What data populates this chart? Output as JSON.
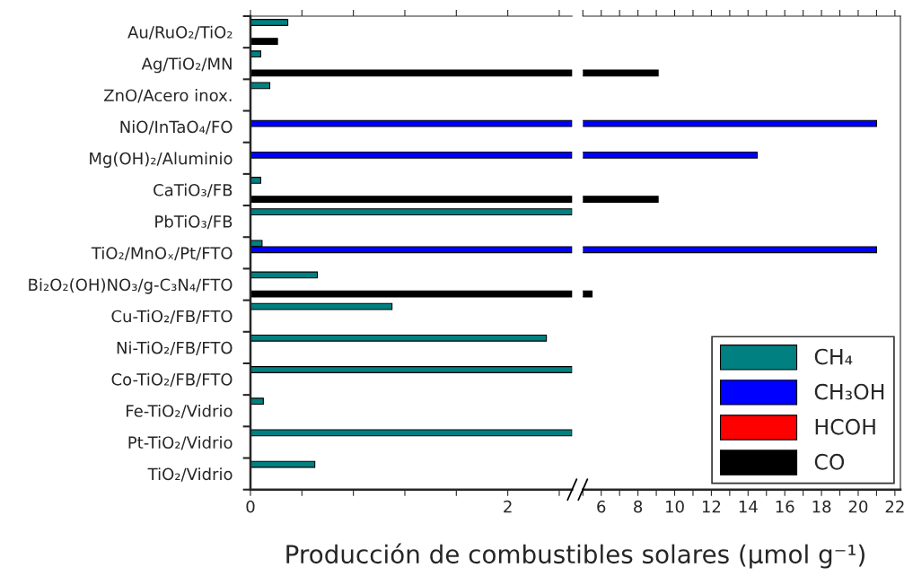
{
  "chart_data": [
    {
      "type": "bar",
      "orientation": "horizontal",
      "categories": [
        "Au/RuO₂/TiO₂",
        "Ag/TiO₂/MN",
        "ZnO/Acero inox.",
        "NiO/InTaO₄/FO",
        "Mg(OH)₂/Aluminio",
        "CaTiO₃/FB",
        "PbTiO₃/FB",
        "TiO₂/MnOₓ/Pt/FTO",
        "Bi₂O₂(OH)NO₃/g-C₃N₄/FTO",
        "Cu-TiO₂/FB/FTO",
        "Ni-TiO₂/FB/FTO",
        "Co-TiO₂/FB/FTO",
        "Fe-TiO₂/Vidrio",
        "Pt-TiO₂/Vidrio",
        "TiO₂/Vidrio"
      ],
      "series": [
        {
          "color": "#008080",
          "values": [
            0.29,
            0.08,
            0.15,
            null,
            null,
            0.08,
            2.5,
            0.09,
            0.52,
            1.1,
            2.3,
            2.5,
            0.1,
            2.5,
            0.5
          ]
        },
        {
          "color": "#0000ff",
          "values": [
            null,
            null,
            null,
            2.5,
            2.5,
            null,
            null,
            2.5,
            null,
            null,
            null,
            null,
            null,
            null,
            null
          ]
        },
        {
          "color": "#ff0000",
          "values": [
            null,
            null,
            null,
            null,
            null,
            null,
            null,
            null,
            null,
            null,
            null,
            null,
            null,
            null,
            null
          ]
        },
        {
          "color": "#000000",
          "values": [
            0.21,
            2.5,
            null,
            null,
            null,
            2.5,
            null,
            null,
            2.5,
            null,
            null,
            null,
            null,
            null,
            null
          ]
        }
      ],
      "xlim": [
        0,
        2.5
      ],
      "xticks": [
        0,
        {
          "value": 0.4,
          "label": null
        },
        {
          "value": 0.8,
          "label": null
        },
        {
          "value": 1.2,
          "label": null
        },
        {
          "value": 1.6,
          "label": null
        },
        2,
        {
          "value": 2.4,
          "label": null
        }
      ]
    },
    {
      "type": "bar",
      "orientation": "horizontal",
      "categories": [
        null,
        null,
        null,
        null,
        null,
        null,
        null,
        null,
        null,
        null,
        null,
        null,
        null,
        null,
        null
      ],
      "tick_labels": "x",
      "series": [
        {
          "name": "CH₄",
          "color": "#008080",
          "values": [
            null,
            null,
            null,
            null,
            null,
            null,
            null,
            null,
            null,
            null,
            null,
            null,
            null,
            null,
            null
          ]
        },
        {
          "name": "CH₃OH",
          "color": "#0000ff",
          "values": [
            null,
            null,
            null,
            21,
            14.5,
            null,
            null,
            21,
            null,
            null,
            null,
            null,
            null,
            null,
            null
          ]
        },
        {
          "name": "HCOH",
          "color": "#ff0000",
          "values": [
            null,
            null,
            null,
            null,
            null,
            null,
            null,
            null,
            null,
            null,
            null,
            null,
            null,
            null,
            null
          ]
        },
        {
          "name": "CO",
          "color": "#000000",
          "values": [
            null,
            9.1,
            null,
            null,
            null,
            9.1,
            null,
            null,
            5.5,
            null,
            null,
            null,
            null,
            null,
            null
          ]
        }
      ],
      "xlim": [
        5,
        22.3
      ],
      "xticks": [
        {
          "value": 5,
          "label": null
        },
        6,
        {
          "value": 7,
          "label": null
        },
        8,
        {
          "value": 9,
          "label": null
        },
        10,
        {
          "value": 11,
          "label": null
        },
        12,
        {
          "value": 13,
          "label": null
        },
        14,
        {
          "value": 15,
          "label": null
        },
        16,
        {
          "value": 17,
          "label": null
        },
        18,
        {
          "value": 19,
          "label": null
        },
        20,
        {
          "value": 21,
          "label": null
        },
        22
      ],
      "xlabel": "Producción de combustibles solares (μmol g⁻¹)",
      "legend": "bottom right"
    }
  ]
}
